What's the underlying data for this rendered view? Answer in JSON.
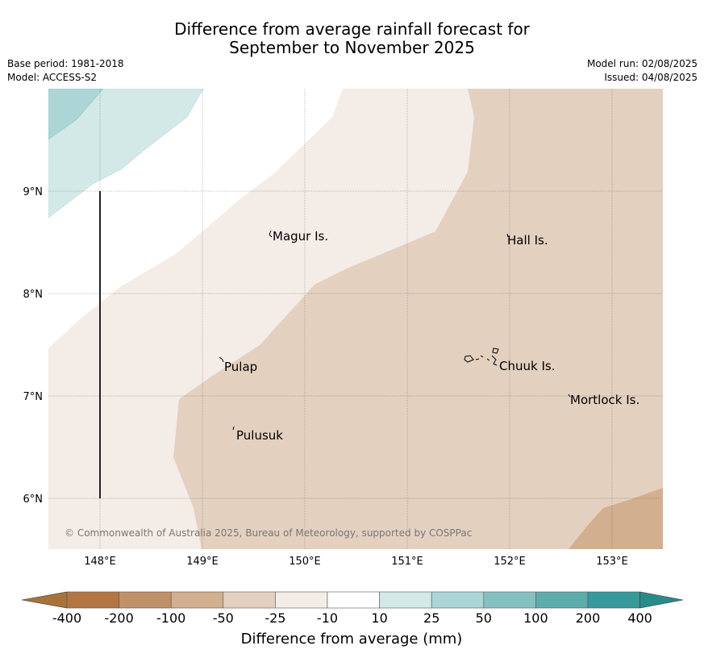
{
  "title_line1": "Difference from average rainfall forecast for",
  "title_line2": "September to November 2025",
  "base_period": "Base period: 1981-2018",
  "model": "Model: ACCESS-S2",
  "model_run": "Model run: 02/08/2025",
  "issued": "Issued: 04/08/2025",
  "copyright": "© Commonwealth of Australia 2025, Bureau of Meteorology, supported by COSPPac",
  "longitude_labels": [
    "148°E",
    "149°E",
    "150°E",
    "151°E",
    "152°E",
    "153°E"
  ],
  "latitude_labels": [
    "9°N",
    "8°N",
    "7°N",
    "6°N"
  ],
  "places": [
    {
      "id": "magur",
      "label": "Magur Is."
    },
    {
      "id": "hall",
      "label": "Hall Is."
    },
    {
      "id": "pulap",
      "label": "Pulap"
    },
    {
      "id": "chuuk",
      "label": "Chuuk Is."
    },
    {
      "id": "mortlock",
      "label": "Mortlock Is."
    },
    {
      "id": "pulusuk",
      "label": "Pulusuk"
    }
  ],
  "colorbar": {
    "title": "Difference from average (mm)",
    "ticks": [
      "-400",
      "-200",
      "-100",
      "-50",
      "-25",
      "-10",
      "10",
      "25",
      "50",
      "100",
      "200",
      "400"
    ],
    "colors": [
      "#a8733a",
      "#b17643",
      "#c09068",
      "#d2af8e",
      "#e3d0bf",
      "#f4ece6",
      "#ffffff",
      "#d3e9e8",
      "#acd6d6",
      "#84c0bf",
      "#5cacab",
      "#36999a",
      "#2a8a8a"
    ]
  }
}
